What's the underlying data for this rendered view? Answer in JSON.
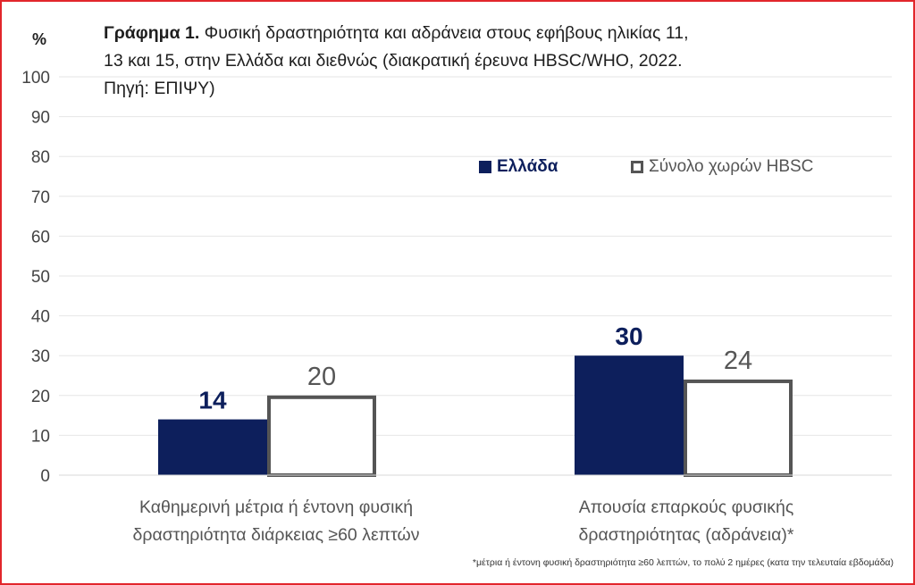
{
  "title": {
    "bold": "Γράφημα 1.",
    "line1": " Φυσική δραστηριότητα και αδράνεια στους εφήβους ηλικίας 11,",
    "line2": "13 και 15, στην Ελλάδα και διεθνώς (διακρατική έρευνα HBSC/WHO, 2022.",
    "line3": "Πηγή: ΕΠΙΨΥ)"
  },
  "footnote": "*μέτρια ή έντονη φυσική δραστηριότητα ≥60 λεπτών, το πολύ 2 ημέρες (κατα την τελευταία εβδομάδα)",
  "colors": {
    "greece": "#0d1f5c",
    "hbsc_border": "#555555",
    "grid": "#e6e6e6",
    "frame": "#e2262b"
  },
  "chart_data": {
    "type": "bar",
    "ylabel": "%",
    "ylim": [
      0,
      100
    ],
    "yticks": [
      0,
      10,
      20,
      30,
      40,
      50,
      60,
      70,
      80,
      90,
      100
    ],
    "grid": true,
    "legend_position": "top-right",
    "categories": [
      {
        "line1": "Καθημερινή μέτρια ή έντονη φυσική",
        "line2": "δραστηριότητα διάρκειας ≥60 λεπτών"
      },
      {
        "line1": "Απουσία επαρκούς φυσικής",
        "line2": "δραστηριότητας (αδράνεια)*"
      }
    ],
    "series": [
      {
        "name": "Ελλάδα",
        "values": [
          14,
          30
        ],
        "data_labels": [
          "14",
          "30"
        ]
      },
      {
        "name": "Σύνολο χωρών HBSC",
        "values": [
          20,
          24
        ],
        "data_labels": [
          "20",
          "24"
        ]
      }
    ]
  }
}
